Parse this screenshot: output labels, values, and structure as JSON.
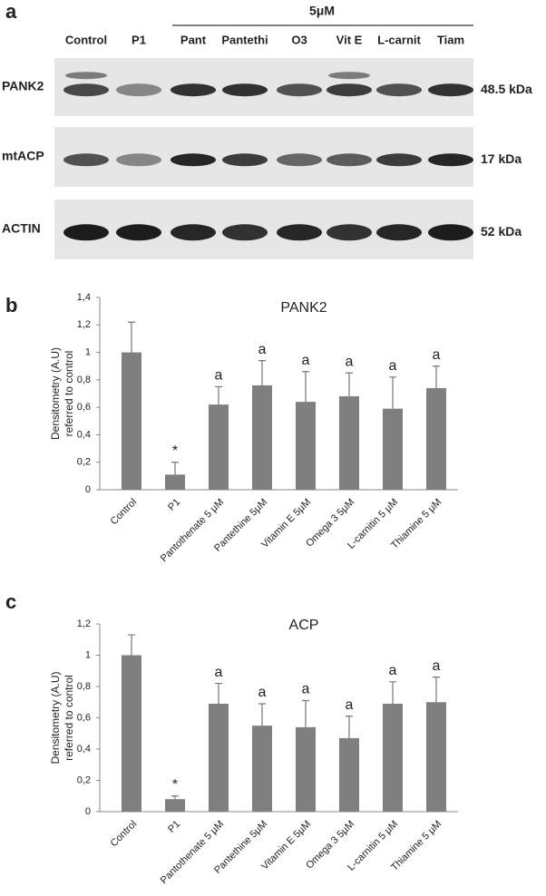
{
  "blot": {
    "panel_label": "a",
    "treatment_label": "5μM",
    "lanes": [
      "Control",
      "P1",
      "Pant",
      "Pantethi",
      "O3",
      "Vit E",
      "L-carnit",
      "Tiam"
    ],
    "rows": [
      {
        "name": "PANK2",
        "size": "48.5 kDa"
      },
      {
        "name": "mtACP",
        "size": "17 kDa"
      },
      {
        "name": "ACTIN",
        "size": "52 kDa"
      }
    ]
  },
  "chart_data": [
    {
      "type": "bar",
      "panel_label": "b",
      "title": "PANK2",
      "y_label": [
        "Densitometry (A.U)",
        "referred to control"
      ],
      "categories": [
        "Control",
        "P1",
        "Pantothenate 5 µM",
        "Pantethine 5µM",
        "Vitamin E 5µM",
        "Omega 3 5µM",
        "L-carnitin 5 µM",
        "Thiamine 5 µM"
      ],
      "values": [
        1.0,
        0.11,
        0.62,
        0.76,
        0.64,
        0.68,
        0.59,
        0.74
      ],
      "errors": [
        0.22,
        0.09,
        0.13,
        0.18,
        0.22,
        0.17,
        0.23,
        0.16
      ],
      "annotations": [
        null,
        "*",
        "a",
        "a",
        "a",
        "a",
        "a",
        "a"
      ],
      "color": "#7f7f7f",
      "ylim": [
        0,
        1.4
      ],
      "yticks": [
        0,
        {
          "value": 0.2,
          "label": "0,2"
        },
        {
          "value": 0.4,
          "label": "0,4"
        },
        {
          "value": 0.6,
          "label": "0,6"
        },
        {
          "value": 0.8,
          "label": "0,8"
        },
        1,
        {
          "value": 1.2,
          "label": "1,2"
        },
        {
          "value": 1.4,
          "label": "1,4"
        }
      ]
    },
    {
      "type": "bar",
      "panel_label": "c",
      "title": "ACP",
      "y_label": [
        "Densitometry (A.U)",
        "referred to control"
      ],
      "categories": [
        "Control",
        "P1",
        "Pantothenate 5 µM",
        "Pantethine 5µM",
        "Vitamin E 5µM",
        "Omega 3 5µM",
        "L-carnitin 5 µM",
        "Thiamine 5 µM"
      ],
      "values": [
        1.0,
        0.08,
        0.69,
        0.55,
        0.54,
        0.47,
        0.69,
        0.7
      ],
      "errors": [
        0.13,
        0.02,
        0.13,
        0.14,
        0.17,
        0.14,
        0.14,
        0.16
      ],
      "annotations": [
        null,
        "*",
        "a",
        "a",
        "a",
        "a",
        "a",
        "a"
      ],
      "color": "#7f7f7f",
      "ylim": [
        0,
        1.2
      ],
      "yticks": [
        0,
        {
          "value": 0.2,
          "label": "0,2"
        },
        {
          "value": 0.4,
          "label": "0,4"
        },
        {
          "value": 0.6,
          "label": "0,6"
        },
        {
          "value": 0.8,
          "label": "0,8"
        },
        1,
        {
          "value": 1.2,
          "label": "1,2"
        }
      ]
    }
  ]
}
